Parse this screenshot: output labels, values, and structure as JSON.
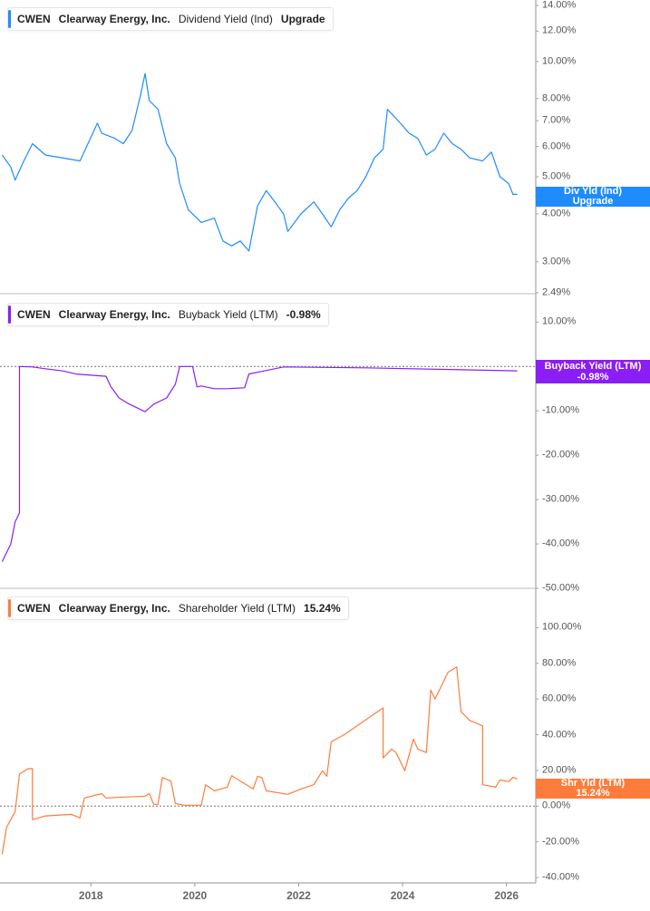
{
  "colors": {
    "dividend": "#1e8cff",
    "buyback": "#8a1ef5",
    "shareholder": "#ff7b3b",
    "axis": "#b5b5b5"
  },
  "chart_data": [
    {
      "type": "line",
      "legend": {
        "ticker": "CWEN",
        "company": "Clearway Energy, Inc.",
        "metric": "Dividend Yield (Ind)",
        "value": "Upgrade"
      },
      "tag": {
        "line1": "Div Yld (Ind)",
        "line2": "Upgrade"
      },
      "y_scale": "log",
      "ylim": [
        2.49,
        14
      ],
      "yticks": [
        "14.00%",
        "12.00%",
        "10.00%",
        "8.00%",
        "7.00%",
        "6.00%",
        "5.00%",
        "4.00%",
        "3.00%",
        "2.49%"
      ],
      "ytick_values": [
        14,
        12,
        10,
        8,
        7,
        6,
        5,
        4,
        3,
        2.49
      ],
      "x": [
        "2016-04",
        "2016-06",
        "2016-07",
        "2016-09",
        "2016-11",
        "2017-02",
        "2017-10",
        "2018-02",
        "2018-03",
        "2018-06",
        "2018-08",
        "2018-10",
        "2018-12",
        "2019-01",
        "2019-02",
        "2019-04",
        "2019-06",
        "2019-08",
        "2019-09",
        "2019-11",
        "2020-02",
        "2020-05",
        "2020-07",
        "2020-09",
        "2020-11",
        "2021-01",
        "2021-03",
        "2021-05",
        "2021-07",
        "2021-09",
        "2021-10",
        "2022-01",
        "2022-04",
        "2022-06",
        "2022-08",
        "2022-10",
        "2022-12",
        "2023-02",
        "2023-04",
        "2023-06",
        "2023-08",
        "2023-09",
        "2023-12",
        "2024-02",
        "2024-04",
        "2024-06",
        "2024-08",
        "2024-10",
        "2024-12",
        "2025-02",
        "2025-04",
        "2025-07",
        "2025-09",
        "2025-11",
        "2026-01",
        "2026-02",
        "2026-03"
      ],
      "y": [
        5.7,
        5.3,
        4.9,
        5.5,
        6.1,
        5.7,
        5.5,
        6.9,
        6.5,
        6.3,
        6.1,
        6.6,
        8.2,
        9.3,
        7.9,
        7.5,
        6.1,
        5.6,
        4.8,
        4.1,
        3.8,
        3.9,
        3.4,
        3.3,
        3.4,
        3.2,
        4.2,
        4.6,
        4.3,
        4.0,
        3.6,
        4.0,
        4.3,
        4.0,
        3.7,
        4.1,
        4.4,
        4.6,
        5.0,
        5.6,
        5.9,
        7.5,
        6.9,
        6.5,
        6.3,
        5.7,
        5.9,
        6.5,
        6.1,
        5.9,
        5.6,
        5.5,
        5.8,
        5.0,
        4.8,
        4.5,
        4.5
      ]
    },
    {
      "type": "line",
      "legend": {
        "ticker": "CWEN",
        "company": "Clearway Energy, Inc.",
        "metric": "Buyback Yield (LTM)",
        "value": "-0.98%"
      },
      "tag": {
        "line1": "Buyback Yield (LTM)",
        "line2": "-0.98%"
      },
      "y_scale": "linear",
      "ylim": [
        -50,
        16
      ],
      "yticks": [
        "10.00%",
        "-10.00%",
        "-20.00%",
        "-30.00%",
        "-40.00%",
        "-50.00%"
      ],
      "ytick_values": [
        10,
        -10,
        -20,
        -30,
        -40,
        -50
      ],
      "reference_line": 0,
      "x": [
        "2016-04",
        "2016-06",
        "2016-07",
        "2016-08",
        "2016-08",
        "2016-11",
        "2017-02",
        "2017-06",
        "2017-09",
        "2018-04",
        "2018-05",
        "2018-07",
        "2018-09",
        "2019-01",
        "2019-03",
        "2019-06",
        "2019-08",
        "2019-09",
        "2019-12",
        "2020-01",
        "2020-02",
        "2020-05",
        "2020-08",
        "2020-12",
        "2021-01",
        "2021-05",
        "2021-09",
        "2023-04",
        "2026-03"
      ],
      "y": [
        -44,
        -40,
        -35,
        -33,
        0,
        -0.1,
        -0.5,
        -1,
        -1.7,
        -2.2,
        -4.4,
        -7.1,
        -8.3,
        -10.2,
        -8.5,
        -7.1,
        -4,
        0,
        0,
        -4.6,
        -4.4,
        -5,
        -5,
        -4.8,
        -1.7,
        -0.9,
        -0.1,
        -0.3,
        -0.98
      ]
    },
    {
      "type": "line",
      "legend": {
        "ticker": "CWEN",
        "company": "Clearway Energy, Inc.",
        "metric": "Shareholder Yield (LTM)",
        "value": "15.24%"
      },
      "tag": {
        "line1": "Shr Yld (LTM)",
        "line2": "15.24%"
      },
      "y_scale": "linear",
      "ylim": [
        -43,
        121
      ],
      "yticks": [
        "100.00%",
        "80.00%",
        "60.00%",
        "40.00%",
        "20.00%",
        "0.00%",
        "-20.00%",
        "-40.00%"
      ],
      "ytick_values": [
        100,
        80,
        60,
        40,
        20,
        0,
        -20,
        -40
      ],
      "reference_line": 0,
      "x": [
        "2016-04",
        "2016-05",
        "2016-07",
        "2016-08",
        "2016-10",
        "2016-11",
        "2016-11",
        "2017-02",
        "2017-08",
        "2017-10",
        "2017-11",
        "2018-03",
        "2018-04",
        "2019-01",
        "2019-02",
        "2019-03",
        "2019-04",
        "2019-05",
        "2019-07",
        "2019-08",
        "2019-10",
        "2020-02",
        "2020-03",
        "2020-05",
        "2020-08",
        "2020-09",
        "2021-02",
        "2021-03",
        "2021-04",
        "2021-05",
        "2021-10",
        "2022-01",
        "2022-04",
        "2022-06",
        "2022-07",
        "2022-08",
        "2022-11",
        "2023-02",
        "2023-05",
        "2023-08",
        "2023-08",
        "2023-10",
        "2023-11",
        "2024-01",
        "2024-03",
        "2024-04",
        "2024-06",
        "2024-07",
        "2024-08",
        "2024-11",
        "2025-01",
        "2025-02",
        "2025-04",
        "2025-07",
        "2025-07",
        "2025-10",
        "2025-11",
        "2026-01",
        "2026-02",
        "2026-03"
      ],
      "y": [
        -27,
        -12,
        -3,
        18,
        21,
        21,
        -7.6,
        -5.5,
        -4.6,
        -6.6,
        4.6,
        7,
        4.6,
        5.6,
        7,
        1,
        1,
        16,
        14,
        1.5,
        0.5,
        0.5,
        12,
        8.6,
        10.6,
        17,
        9.6,
        16.7,
        16,
        8.6,
        6.6,
        9.6,
        12,
        19.8,
        16.7,
        36,
        40,
        45,
        50,
        55,
        27,
        32,
        30,
        19.8,
        37.6,
        32,
        30,
        65,
        60,
        75,
        78,
        53,
        48,
        45,
        12,
        10.6,
        14.7,
        13.7,
        16.2,
        15.24
      ]
    }
  ],
  "x_axis": {
    "ticks": [
      "2018",
      "2020",
      "2022",
      "2024",
      "2026"
    ],
    "tick_years": [
      2018,
      2020,
      2022,
      2024,
      2026
    ]
  }
}
